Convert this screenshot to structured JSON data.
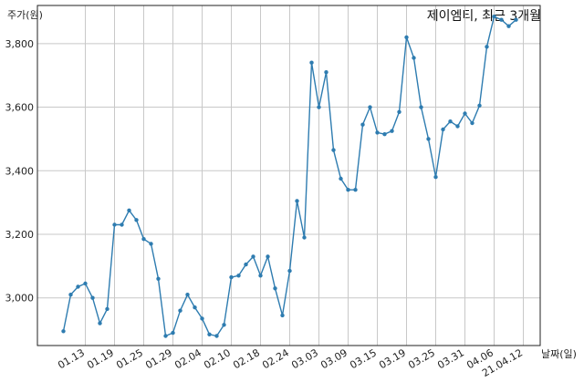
{
  "chart_data": {
    "type": "line",
    "title": "제이엠티, 최근 3개월",
    "ylabel": "주가(원)",
    "xlabel": "날짜(일)",
    "ylim": [
      2850,
      3920
    ],
    "yticks": [
      3000,
      3200,
      3400,
      3600,
      3800
    ],
    "ytick_labels": [
      "3,000",
      "3,200",
      "3,400",
      "3,600",
      "3,800"
    ],
    "x_tick_labels": [
      "01.13",
      "01.19",
      "01.25",
      "01.29",
      "02.04",
      "02.10",
      "02.18",
      "02.24",
      "03.03",
      "03.09",
      "03.15",
      "03.19",
      "03.25",
      "03.31",
      "04.06",
      "21.04.12"
    ],
    "x_tick_index": [
      3,
      7,
      11,
      15,
      19,
      23,
      27,
      31,
      35,
      39,
      43,
      47,
      51,
      55,
      59,
      63
    ],
    "grid": true,
    "color": "#2e7cb0",
    "series": [
      {
        "values": [
          2895,
          3010,
          3035,
          3045,
          3000,
          2920,
          2965,
          3230,
          3230,
          3275,
          3245,
          3185,
          3170,
          3060,
          2880,
          2890,
          2960,
          3010,
          2970,
          2935,
          2885,
          2880,
          2915,
          3065,
          3070,
          3105,
          3130,
          3070,
          3130,
          3030,
          2945,
          3085,
          3305,
          3190,
          3740,
          3600,
          3710,
          3465,
          3375,
          3340,
          3340,
          3545,
          3600,
          3520,
          3515,
          3525,
          3585,
          3820,
          3755,
          3600,
          3500,
          3380,
          3530,
          3555,
          3540,
          3580,
          3550,
          3605,
          3790,
          3885,
          3875,
          3855,
          3875
        ]
      }
    ]
  }
}
